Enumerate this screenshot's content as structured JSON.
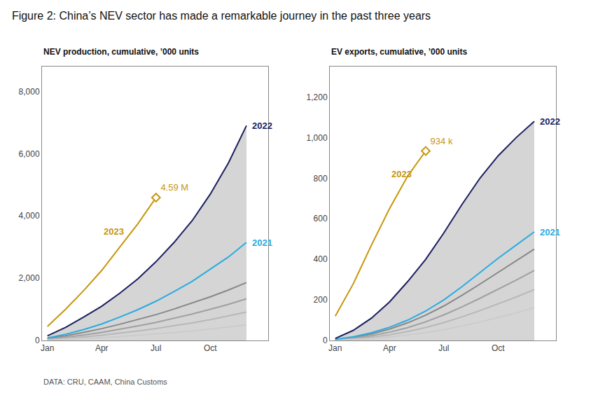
{
  "chart_data": [
    {
      "type": "line",
      "title": "Figure 2: China’s NEV sector has made a remarkable journey in the past three years",
      "subtitle": "NEV production, cumulative, ’000 units",
      "x": [
        0,
        1,
        2,
        3,
        4,
        5,
        6,
        7,
        8,
        9,
        10,
        11
      ],
      "xlim": [
        -0.3,
        12.2
      ],
      "xticks": [
        {
          "value": 0,
          "label": "Jan"
        },
        {
          "value": 3,
          "label": "Apr"
        },
        {
          "value": 6,
          "label": "Jul"
        },
        {
          "value": 9,
          "label": "Oct"
        }
      ],
      "ylim": [
        0,
        8800
      ],
      "yticks": [
        0,
        {
          "value": 2000,
          "label": "2,000"
        },
        {
          "value": 4000,
          "label": "4,000"
        },
        {
          "value": 6000,
          "label": "6,000"
        },
        {
          "value": 8000,
          "label": "8,000"
        }
      ],
      "grid": false,
      "series": [
        {
          "type": "area",
          "color": "#d5d5d5",
          "values": [
            150,
            420,
            750,
            1100,
            1520,
            1980,
            2530,
            3150,
            3850,
            4700,
            5700,
            6900
          ]
        },
        {
          "type": "line",
          "color": "#888888",
          "values": [
            60,
            150,
            260,
            380,
            520,
            670,
            830,
            1010,
            1200,
            1400,
            1620,
            1860
          ]
        },
        {
          "type": "line",
          "color": "#a0a0a0",
          "values": [
            40,
            100,
            175,
            260,
            360,
            465,
            580,
            710,
            850,
            1000,
            1160,
            1340
          ]
        },
        {
          "type": "line",
          "color": "#b8b8b8",
          "values": [
            25,
            65,
            115,
            170,
            235,
            305,
            385,
            470,
            565,
            670,
            785,
            910
          ]
        },
        {
          "type": "line",
          "color": "#cccccc",
          "values": [
            12,
            32,
            58,
            88,
            122,
            160,
            203,
            252,
            305,
            365,
            430,
            502
          ]
        },
        {
          "type": "line",
          "color": "#29abe2",
          "values": [
            80,
            200,
            350,
            530,
            750,
            990,
            1260,
            1570,
            1900,
            2280,
            2680,
            3150
          ]
        },
        {
          "type": "line",
          "color": "#1a1f5e",
          "values": [
            150,
            420,
            750,
            1100,
            1520,
            1980,
            2530,
            3150,
            3850,
            4700,
            5700,
            6900
          ]
        },
        {
          "type": "line",
          "color": "#c8960c",
          "values": [
            450,
            1000,
            1600,
            2250,
            3000,
            3750,
            4590,
            null,
            null,
            null,
            null,
            null
          ]
        },
        {
          "type": "scatter",
          "marker": "diamond",
          "color": "#c8960c",
          "data_labels": true,
          "values": [
            null,
            null,
            null,
            null,
            null,
            null,
            4590,
            null,
            null,
            null,
            null,
            null
          ],
          "value_labels": [
            null,
            null,
            null,
            null,
            null,
            null,
            "4.59 M",
            null,
            null,
            null,
            null,
            null
          ]
        }
      ],
      "annotations": [
        {
          "text": "2023",
          "x": 2.8,
          "y": 3500,
          "color": "#c8960c"
        },
        {
          "text": "2022",
          "x": 11,
          "y": 6900,
          "color": "#1a1f5e"
        },
        {
          "text": "2021",
          "x": 11,
          "y": 3150,
          "color": "#29abe2"
        },
        {
          "text": "DATA: CRU, CAAM, China Customs"
        }
      ]
    },
    {
      "type": "line",
      "subtitle": "EV exports, cumulative, ’000 units",
      "x": [
        0,
        1,
        2,
        3,
        4,
        5,
        6,
        7,
        8,
        9,
        10,
        11
      ],
      "xlim": [
        -0.3,
        12.2
      ],
      "xticks": [
        {
          "value": 0,
          "label": "Jan"
        },
        {
          "value": 3,
          "label": "Apr"
        },
        {
          "value": 6,
          "label": "Jul"
        },
        {
          "value": 9,
          "label": "Oct"
        }
      ],
      "ylim": [
        0,
        1350
      ],
      "yticks": [
        0,
        200,
        400,
        600,
        800,
        {
          "value": 1000,
          "label": "1,000"
        },
        {
          "value": 1200,
          "label": "1,200"
        }
      ],
      "grid": false,
      "series": [
        {
          "type": "area",
          "color": "#d5d5d5",
          "values": [
            10,
            50,
            110,
            190,
            290,
            400,
            530,
            670,
            800,
            910,
            1000,
            1080
          ]
        },
        {
          "type": "line",
          "color": "#888888",
          "values": [
            4,
            15,
            32,
            56,
            87,
            125,
            170,
            222,
            278,
            335,
            390,
            450
          ]
        },
        {
          "type": "line",
          "color": "#a0a0a0",
          "values": [
            3,
            11,
            23,
            41,
            63,
            92,
            126,
            165,
            208,
            253,
            297,
            345
          ]
        },
        {
          "type": "line",
          "color": "#b8b8b8",
          "values": [
            2,
            7,
            16,
            28,
            44,
            64,
            88,
            116,
            147,
            180,
            214,
            251
          ]
        },
        {
          "type": "line",
          "color": "#cccccc",
          "values": [
            1,
            4,
            9,
            16,
            26,
            38,
            53,
            71,
            91,
            113,
            136,
            162
          ]
        },
        {
          "type": "line",
          "color": "#29abe2",
          "values": [
            5,
            18,
            38,
            65,
            100,
            145,
            200,
            265,
            335,
            405,
            470,
            535
          ]
        },
        {
          "type": "line",
          "color": "#1a1f5e",
          "values": [
            10,
            50,
            110,
            190,
            290,
            400,
            530,
            670,
            800,
            910,
            1000,
            1080
          ]
        },
        {
          "type": "line",
          "color": "#c8960c",
          "values": [
            120,
            280,
            470,
            650,
            810,
            934,
            null,
            null,
            null,
            null,
            null,
            null
          ]
        },
        {
          "type": "scatter",
          "marker": "diamond",
          "color": "#c8960c",
          "data_labels": true,
          "values": [
            null,
            null,
            null,
            null,
            null,
            934,
            null,
            null,
            null,
            null,
            null,
            null
          ],
          "value_labels": [
            null,
            null,
            null,
            null,
            null,
            "934 k",
            null,
            null,
            null,
            null,
            null,
            null
          ]
        }
      ],
      "annotations": [
        {
          "text": "2023",
          "x": 2.8,
          "y": 820,
          "color": "#c8960c"
        },
        {
          "text": "2022",
          "x": 11,
          "y": 1080,
          "color": "#1a1f5e"
        },
        {
          "text": "2021",
          "x": 11,
          "y": 535,
          "color": "#29abe2"
        }
      ]
    }
  ]
}
